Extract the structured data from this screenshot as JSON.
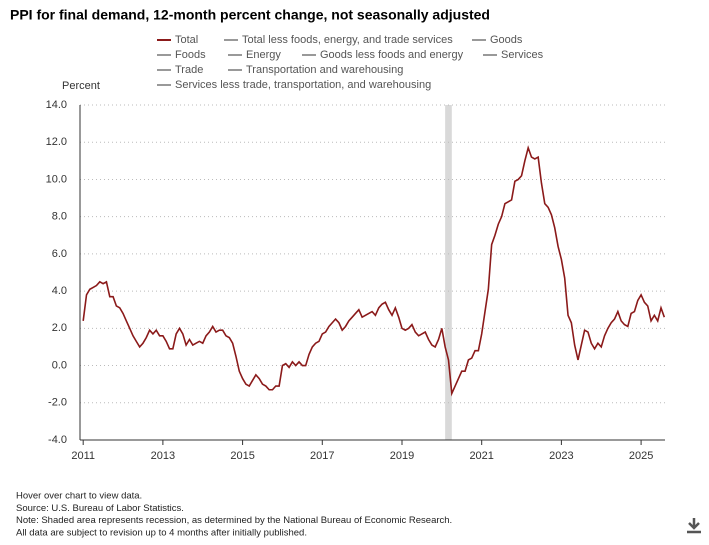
{
  "chart_data": {
    "type": "line",
    "title": "PPI for final demand, 12-month percent change, not seasonally adjusted",
    "y_label": "Percent",
    "series": [
      {
        "name": "Total",
        "color": "#8b1a1a",
        "values": [
          2.4,
          3.8,
          4.1,
          4.2,
          4.3,
          4.5,
          4.4,
          4.5,
          3.7,
          3.7,
          3.2,
          3.1,
          2.8,
          2.4,
          2.0,
          1.6,
          1.3,
          1.0,
          1.2,
          1.5,
          1.9,
          1.7,
          1.9,
          1.6,
          1.6,
          1.3,
          0.9,
          0.9,
          1.7,
          2.0,
          1.7,
          1.1,
          1.4,
          1.1,
          1.2,
          1.3,
          1.2,
          1.6,
          1.8,
          2.1,
          1.8,
          1.9,
          1.9,
          1.6,
          1.5,
          1.2,
          0.5,
          -0.3,
          -0.7,
          -1.0,
          -1.1,
          -0.8,
          -0.5,
          -0.7,
          -1.0,
          -1.1,
          -1.3,
          -1.3,
          -1.1,
          -1.1,
          0.0,
          0.1,
          -0.1,
          0.2,
          0.0,
          0.2,
          0.0,
          0.0,
          0.6,
          1.0,
          1.2,
          1.3,
          1.7,
          1.8,
          2.1,
          2.3,
          2.5,
          2.3,
          1.9,
          2.1,
          2.4,
          2.6,
          2.8,
          3.0,
          2.6,
          2.7,
          2.8,
          2.9,
          2.7,
          3.1,
          3.3,
          3.4,
          3.0,
          2.7,
          3.1,
          2.6,
          2.0,
          1.9,
          2.0,
          2.2,
          1.8,
          1.6,
          1.7,
          1.8,
          1.4,
          1.1,
          1.0,
          1.4,
          2.0,
          1.0,
          0.3,
          -1.5,
          -1.1,
          -0.7,
          -0.3,
          -0.3,
          0.3,
          0.4,
          0.8,
          0.8,
          1.7,
          2.9,
          4.1,
          6.5,
          7.0,
          7.6,
          8.0,
          8.7,
          8.8,
          8.9,
          9.9,
          10.0,
          10.2,
          11.0,
          11.7,
          11.2,
          11.1,
          11.2,
          9.8,
          8.7,
          8.5,
          8.1,
          7.4,
          6.4,
          5.7,
          4.7,
          2.7,
          2.3,
          1.1,
          0.3,
          1.1,
          1.9,
          1.8,
          1.2,
          0.9,
          1.2,
          1.0,
          1.6,
          2.0,
          2.3,
          2.5,
          2.9,
          2.4,
          2.2,
          2.1,
          2.8,
          2.9,
          3.5,
          3.8,
          3.4,
          3.2,
          2.4,
          2.7,
          2.4,
          3.1,
          2.6
        ]
      }
    ],
    "other_series": [
      {
        "name": "Total less foods, energy, and trade services",
        "color": "#999999"
      },
      {
        "name": "Goods",
        "color": "#999999"
      },
      {
        "name": "Foods",
        "color": "#999999"
      },
      {
        "name": "Energy",
        "color": "#999999"
      },
      {
        "name": "Goods less foods and energy",
        "color": "#999999"
      },
      {
        "name": "Services",
        "color": "#999999"
      },
      {
        "name": "Trade",
        "color": "#999999"
      },
      {
        "name": "Transportation and warehousing",
        "color": "#999999"
      },
      {
        "name": "Services less trade, transportation, and warehousing",
        "color": "#999999"
      }
    ],
    "x": [
      2011,
      2011.083,
      2011.167,
      2011.25,
      2011.333,
      2011.417,
      2011.5,
      2011.583,
      2011.667,
      2011.75,
      2011.833,
      2011.917,
      2012,
      2012.083,
      2012.167,
      2012.25,
      2012.333,
      2012.417,
      2012.5,
      2012.583,
      2012.667,
      2012.75,
      2012.833,
      2012.917,
      2013,
      2013.083,
      2013.167,
      2013.25,
      2013.333,
      2013.417,
      2013.5,
      2013.583,
      2013.667,
      2013.75,
      2013.833,
      2013.917,
      2014,
      2014.083,
      2014.167,
      2014.25,
      2014.333,
      2014.417,
      2014.5,
      2014.583,
      2014.667,
      2014.75,
      2014.833,
      2014.917,
      2015,
      2015.083,
      2015.167,
      2015.25,
      2015.333,
      2015.417,
      2015.5,
      2015.583,
      2015.667,
      2015.75,
      2015.833,
      2015.917,
      2016,
      2016.083,
      2016.167,
      2016.25,
      2016.333,
      2016.417,
      2016.5,
      2016.583,
      2016.667,
      2016.75,
      2016.833,
      2016.917,
      2017,
      2017.083,
      2017.167,
      2017.25,
      2017.333,
      2017.417,
      2017.5,
      2017.583,
      2017.667,
      2017.75,
      2017.833,
      2017.917,
      2018,
      2018.083,
      2018.167,
      2018.25,
      2018.333,
      2018.417,
      2018.5,
      2018.583,
      2018.667,
      2018.75,
      2018.833,
      2018.917,
      2019,
      2019.083,
      2019.167,
      2019.25,
      2019.333,
      2019.417,
      2019.5,
      2019.583,
      2019.667,
      2019.75,
      2019.833,
      2019.917,
      2020,
      2020.083,
      2020.167,
      2020.25,
      2020.333,
      2020.417,
      2020.5,
      2020.583,
      2020.667,
      2020.75,
      2020.833,
      2020.917,
      2021,
      2021.083,
      2021.167,
      2021.25,
      2021.333,
      2021.417,
      2021.5,
      2021.583,
      2021.667,
      2021.75,
      2021.833,
      2021.917,
      2022,
      2022.083,
      2022.167,
      2022.25,
      2022.333,
      2022.417,
      2022.5,
      2022.583,
      2022.667,
      2022.75,
      2022.833,
      2022.917,
      2023,
      2023.083,
      2023.167,
      2023.25,
      2023.333,
      2023.417,
      2023.5,
      2023.583,
      2023.667,
      2023.75,
      2023.833,
      2023.917,
      2024,
      2024.083,
      2024.167,
      2024.25,
      2024.333,
      2024.417,
      2024.5,
      2024.583,
      2024.667,
      2024.75,
      2024.833,
      2024.917,
      2025,
      2025.083,
      2025.167,
      2025.25,
      2025.333,
      2025.417,
      2025.5,
      2025.583
    ],
    "xlim": [
      2010.92,
      2025.6
    ],
    "xticks": [
      2011,
      2013,
      2015,
      2017,
      2019,
      2021,
      2023,
      2025
    ],
    "ylim": [
      -4,
      14
    ],
    "yticks": [
      {
        "value": -4,
        "label": "-4.0"
      },
      {
        "value": -2,
        "label": "-2.0"
      },
      {
        "value": 0,
        "label": "0.0"
      },
      {
        "value": 2,
        "label": "2.0"
      },
      {
        "value": 4,
        "label": "4.0"
      },
      {
        "value": 6,
        "label": "6.0"
      },
      {
        "value": 8,
        "label": "8.0"
      },
      {
        "value": 10,
        "label": "10.0"
      },
      {
        "value": 12,
        "label": "12.0"
      },
      {
        "value": 14,
        "label": "14.0"
      }
    ],
    "grid": true,
    "recession": [
      2020.083,
      2020.25
    ],
    "recession_color": "#d9d9d9",
    "notes": [
      "Hover over chart to view data.",
      "Source: U.S. Bureau of Labor Statistics.",
      "Note: Shaded area represents recession, as determined by the National Bureau of Economic Research.",
      "All data are subject to revision up to 4 months after initially published."
    ]
  }
}
